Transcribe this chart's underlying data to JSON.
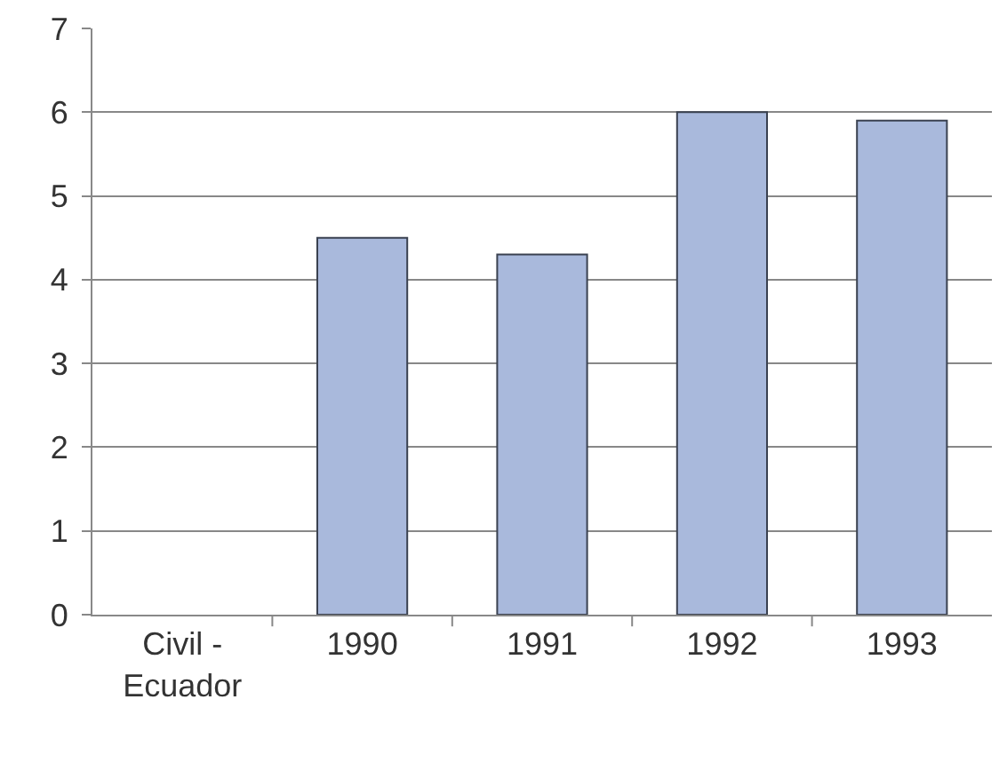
{
  "chart_data": {
    "type": "bar",
    "categories": [
      "Civil - Ecuador",
      "1990",
      "1991",
      "1992",
      "1993"
    ],
    "values": [
      null,
      4.5,
      4.3,
      6.0,
      5.9
    ],
    "color": "#a9b9dc",
    "ylim": [
      0,
      7
    ],
    "yticks": [
      0,
      1,
      2,
      3,
      4,
      5,
      6,
      7
    ],
    "grid": "y"
  }
}
